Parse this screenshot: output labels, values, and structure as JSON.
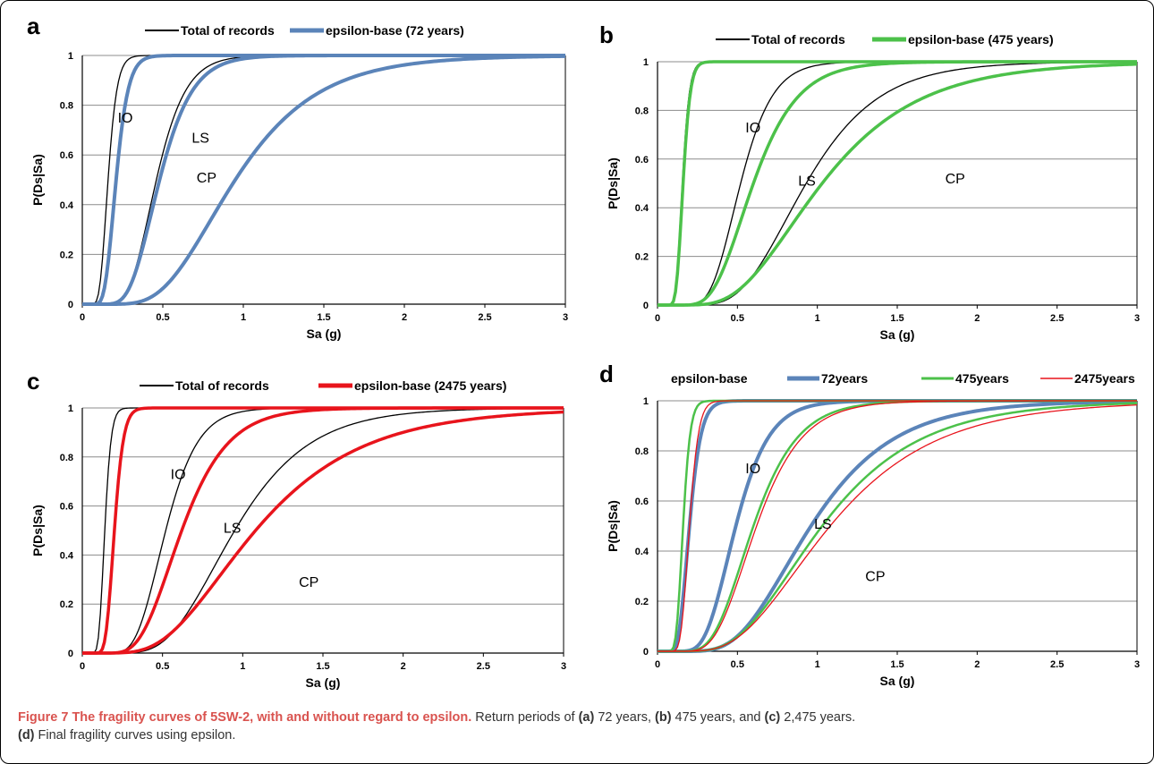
{
  "colors": {
    "records": "#000000",
    "y72": "#5b84b9",
    "y475": "#4cc14a",
    "y2475": "#e8141c",
    "grid": "#8c8c8c",
    "caption_accent": "#d9534f"
  },
  "caption": {
    "label": "Figure 7",
    "title": "The fragility curves of 5SW-2, with and without regard to epsilon.",
    "text_1": " Return periods of ",
    "ref_a": "(a)",
    "text_2": " 72 years, ",
    "ref_b": "(b)",
    "text_3": " 475 years, and ",
    "ref_c": "(c)",
    "text_4": " 2,475 years.",
    "ref_d": "(d)",
    "text_5": " Final fragility curves using epsilon."
  },
  "chart_data": [
    {
      "type": "line",
      "panel": "a",
      "xlabel": "Sa (g)",
      "ylabel": "P(Ds|Sa)",
      "xlim": [
        0,
        3
      ],
      "ylim": [
        0,
        1
      ],
      "xticks": [
        "0",
        "0.5",
        "1",
        "1.5",
        "2",
        "2.5",
        "3"
      ],
      "yticks": [
        "0",
        "0.2",
        "0.4",
        "0.6",
        "0.8",
        "1"
      ],
      "grid": "horizontal",
      "legend_position": "top",
      "legend": [
        {
          "label": "Total of records",
          "color": "#000000",
          "width": 2
        },
        {
          "label": "epsilon-base (72 years)",
          "color": "#5b84b9",
          "width": 5
        }
      ],
      "annotations": [
        {
          "text": "IO",
          "x": 0.22,
          "y": 0.73
        },
        {
          "text": "LS",
          "x": 0.68,
          "y": 0.65
        },
        {
          "text": "CP",
          "x": 0.71,
          "y": 0.49
        }
      ],
      "curves": [
        {
          "name": "Total of records",
          "color": "#000000",
          "width": 1.3,
          "median": 0.16,
          "beta": 0.27
        },
        {
          "name": "Total of records",
          "color": "#000000",
          "width": 1.3,
          "median": 0.46,
          "beta": 0.31
        },
        {
          "name": "epsilon-base (72 years)",
          "color": "#5b84b9",
          "width": 4,
          "median": 0.21,
          "beta": 0.28
        },
        {
          "name": "epsilon-base (72 years)",
          "color": "#5b84b9",
          "width": 4,
          "median": 0.48,
          "beta": 0.33
        },
        {
          "name": "epsilon-base (72 years)",
          "color": "#5b84b9",
          "width": 4,
          "median": 0.95,
          "beta": 0.42
        }
      ]
    },
    {
      "type": "line",
      "panel": "b",
      "xlabel": "Sa (g)",
      "ylabel": "P(Ds|Sa)",
      "xlim": [
        0,
        3
      ],
      "ylim": [
        0,
        1
      ],
      "xticks": [
        "0",
        "0.5",
        "1",
        "1.5",
        "2",
        "2.5",
        "3"
      ],
      "yticks": [
        "0",
        "0.2",
        "0.4",
        "0.6",
        "0.8",
        "1"
      ],
      "grid": "horizontal",
      "legend_position": "top",
      "legend": [
        {
          "label": "Total of records",
          "color": "#000000",
          "width": 2
        },
        {
          "label": "epsilon-base (475 years)",
          "color": "#4cc14a",
          "width": 5
        }
      ],
      "annotations": [
        {
          "text": "IO",
          "x": 0.55,
          "y": 0.71
        },
        {
          "text": "LS",
          "x": 0.88,
          "y": 0.49
        },
        {
          "text": "CP",
          "x": 1.8,
          "y": 0.5
        }
      ],
      "curves": [
        {
          "name": "Total of records",
          "color": "#000000",
          "width": 1.3,
          "median": 0.155,
          "beta": 0.22
        },
        {
          "name": "Total of records",
          "color": "#000000",
          "width": 1.3,
          "median": 0.52,
          "beta": 0.3
        },
        {
          "name": "Total of records",
          "color": "#000000",
          "width": 1.3,
          "median": 0.93,
          "beta": 0.38
        },
        {
          "name": "epsilon-base (475 years)",
          "color": "#4cc14a",
          "width": 3.5,
          "median": 0.16,
          "beta": 0.22
        },
        {
          "name": "epsilon-base (475 years)",
          "color": "#4cc14a",
          "width": 3.5,
          "median": 0.6,
          "beta": 0.36
        },
        {
          "name": "epsilon-base (475 years)",
          "color": "#4cc14a",
          "width": 3.5,
          "median": 1.03,
          "beta": 0.46
        }
      ]
    },
    {
      "type": "line",
      "panel": "c",
      "xlabel": "Sa (g)",
      "ylabel": "P(Ds|Sa)",
      "xlim": [
        0,
        3
      ],
      "ylim": [
        0,
        1
      ],
      "xticks": [
        "0",
        "0.5",
        "1",
        "1.5",
        "2",
        "2.5",
        "3"
      ],
      "yticks": [
        "0",
        "0.2",
        "0.4",
        "0.6",
        "0.8",
        "1"
      ],
      "grid": "horizontal",
      "legend_position": "top",
      "legend": [
        {
          "label": "Total of records",
          "color": "#000000",
          "width": 2
        },
        {
          "label": "epsilon-base (2475 years)",
          "color": "#e8141c",
          "width": 5
        }
      ],
      "annotations": [
        {
          "text": "IO",
          "x": 0.55,
          "y": 0.71
        },
        {
          "text": "LS",
          "x": 0.88,
          "y": 0.49
        },
        {
          "text": "CP",
          "x": 1.35,
          "y": 0.27
        }
      ],
      "curves": [
        {
          "name": "Total of records",
          "color": "#000000",
          "width": 1.3,
          "median": 0.14,
          "beta": 0.22
        },
        {
          "name": "Total of records",
          "color": "#000000",
          "width": 1.3,
          "median": 0.52,
          "beta": 0.3
        },
        {
          "name": "Total of records",
          "color": "#000000",
          "width": 1.3,
          "median": 0.95,
          "beta": 0.38
        },
        {
          "name": "epsilon-base (2475 years)",
          "color": "#e8141c",
          "width": 3.5,
          "median": 0.2,
          "beta": 0.22
        },
        {
          "name": "epsilon-base (2475 years)",
          "color": "#e8141c",
          "width": 3.5,
          "median": 0.62,
          "beta": 0.36
        },
        {
          "name": "epsilon-base (2475 years)",
          "color": "#e8141c",
          "width": 3.5,
          "median": 1.08,
          "beta": 0.48
        }
      ]
    },
    {
      "type": "line",
      "panel": "d",
      "xlabel": "Sa (g)",
      "ylabel": "P(Ds|Sa)",
      "xlim": [
        0,
        3
      ],
      "ylim": [
        0,
        1
      ],
      "xticks": [
        "0",
        "0.5",
        "1",
        "1.5",
        "2",
        "2.5",
        "3"
      ],
      "yticks": [
        "0",
        "0.2",
        "0.4",
        "0.6",
        "0.8",
        "1"
      ],
      "grid": "horizontal",
      "legend_position": "top",
      "legend_title": "epsilon-base",
      "legend": [
        {
          "label": "72years",
          "color": "#5b84b9",
          "width": 5
        },
        {
          "label": "475years",
          "color": "#4cc14a",
          "width": 3
        },
        {
          "label": "2475years",
          "color": "#e8141c",
          "width": 1.5
        }
      ],
      "annotations": [
        {
          "text": "IO",
          "x": 0.55,
          "y": 0.71
        },
        {
          "text": "LS",
          "x": 0.98,
          "y": 0.49
        },
        {
          "text": "CP",
          "x": 1.3,
          "y": 0.28
        }
      ],
      "curves": [
        {
          "name": "72years",
          "color": "#5b84b9",
          "width": 4,
          "median": 0.2,
          "beta": 0.28
        },
        {
          "name": "72years",
          "color": "#5b84b9",
          "width": 4,
          "median": 0.49,
          "beta": 0.33
        },
        {
          "name": "72years",
          "color": "#5b84b9",
          "width": 4,
          "median": 0.96,
          "beta": 0.42
        },
        {
          "name": "475years",
          "color": "#4cc14a",
          "width": 2.5,
          "median": 0.16,
          "beta": 0.22
        },
        {
          "name": "475years",
          "color": "#4cc14a",
          "width": 2.5,
          "median": 0.6,
          "beta": 0.36
        },
        {
          "name": "475years",
          "color": "#4cc14a",
          "width": 2.5,
          "median": 1.03,
          "beta": 0.46
        },
        {
          "name": "2475years",
          "color": "#e8141c",
          "width": 1.3,
          "median": 0.2,
          "beta": 0.22
        },
        {
          "name": "2475years",
          "color": "#e8141c",
          "width": 1.3,
          "median": 0.62,
          "beta": 0.36
        },
        {
          "name": "2475years",
          "color": "#e8141c",
          "width": 1.3,
          "median": 1.08,
          "beta": 0.48
        }
      ]
    }
  ]
}
